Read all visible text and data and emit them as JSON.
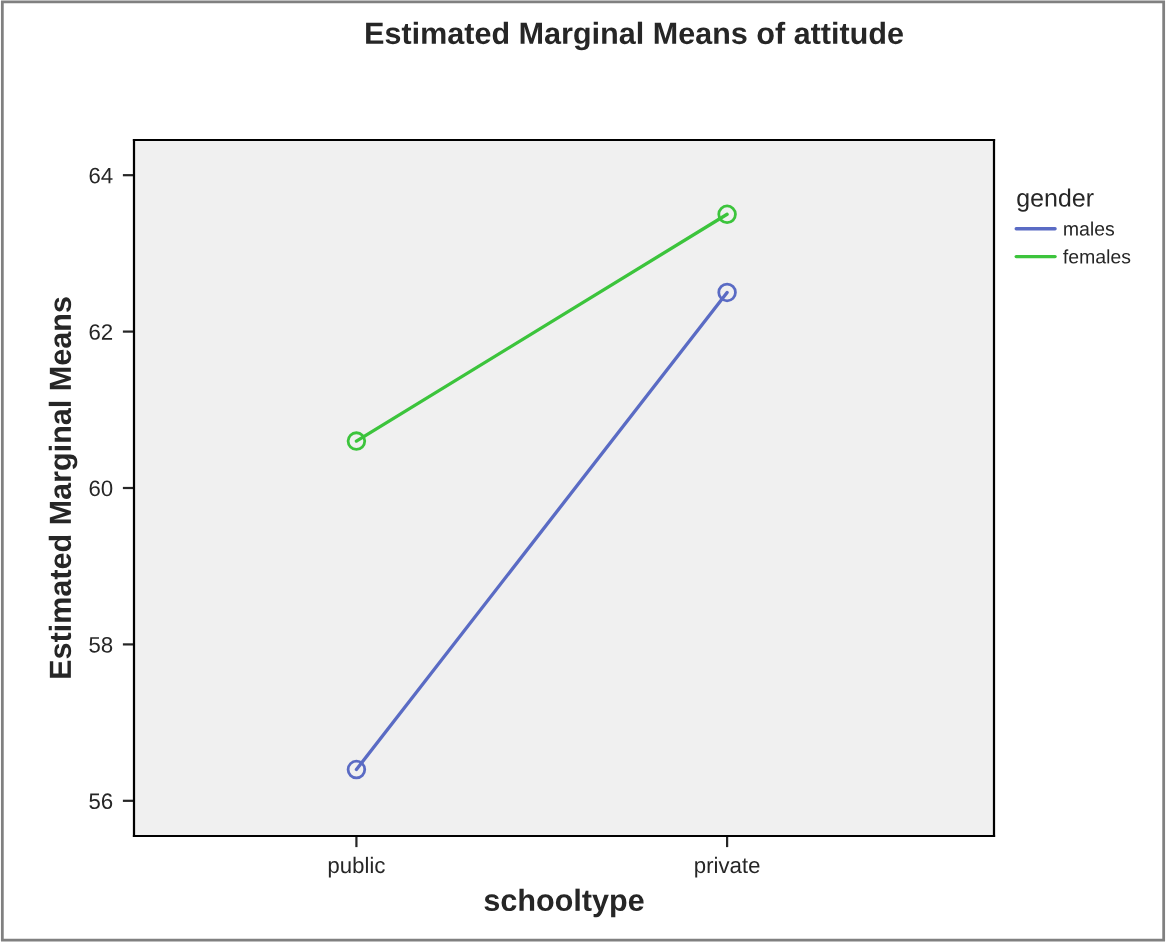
{
  "chart_data": {
    "type": "line",
    "title": "Estimated Marginal Means of attitude",
    "xlabel": "schooltype",
    "ylabel": "Estimated Marginal Means",
    "legend_title": "gender",
    "categories": [
      "public",
      "private"
    ],
    "series": [
      {
        "name": "males",
        "color": "#5a6bc4",
        "values": [
          56.4,
          62.5
        ]
      },
      {
        "name": "females",
        "color": "#3cc43c",
        "values": [
          60.6,
          63.5
        ]
      }
    ],
    "ylim": [
      55.55,
      64.45
    ],
    "yticks": [
      56,
      58,
      60,
      62,
      64
    ],
    "marker": "circle",
    "line_style": "solid",
    "legend": "right",
    "grid": false
  }
}
